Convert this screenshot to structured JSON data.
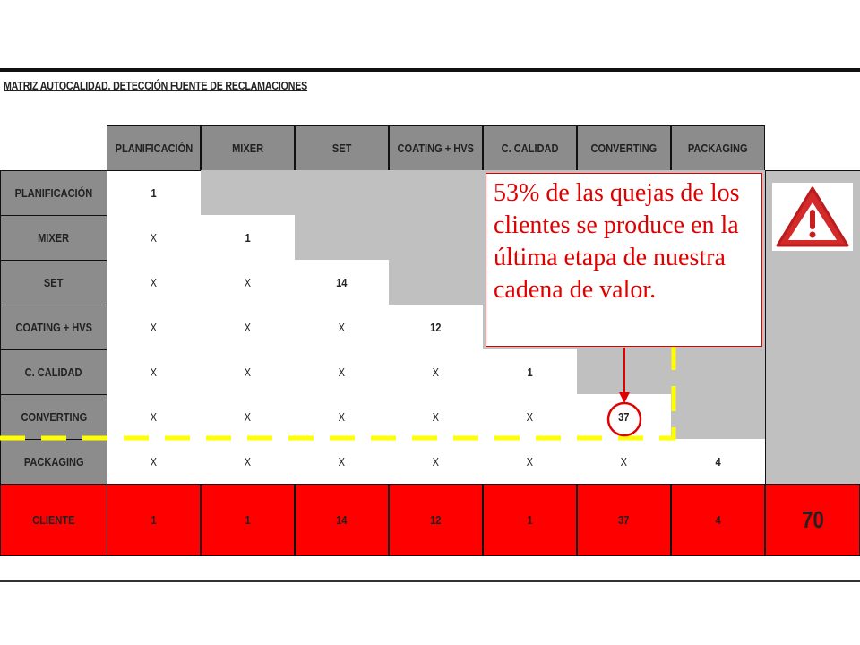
{
  "title": "MATRIZ AUTOCALIDAD. DETECCIÓN FUENTE DE RECLAMACIONES",
  "columns": [
    "PLANIFICACIÓN",
    "MIXER",
    "SET",
    "COATING + HVS",
    "C. CALIDAD",
    "CONVERTING",
    "PACKAGING"
  ],
  "rows": [
    {
      "label": "PLANIFICACIÓN",
      "cells": [
        "1"
      ]
    },
    {
      "label": "MIXER",
      "cells": [
        "X",
        "1"
      ]
    },
    {
      "label": "SET",
      "cells": [
        "X",
        "X",
        "14"
      ]
    },
    {
      "label": "COATING + HVS",
      "cells": [
        "X",
        "X",
        "X",
        "12"
      ]
    },
    {
      "label": "C. CALIDAD",
      "cells": [
        "X",
        "X",
        "X",
        "X",
        "1"
      ]
    },
    {
      "label": "CONVERTING",
      "cells": [
        "X",
        "X",
        "X",
        "X",
        "X",
        "37"
      ]
    },
    {
      "label": "PACKAGING",
      "cells": [
        "X",
        "X",
        "X",
        "X",
        "X",
        "X",
        "4"
      ]
    }
  ],
  "total_row": {
    "label": "CLIENTE",
    "cells": [
      "1",
      "1",
      "14",
      "12",
      "1",
      "37",
      "4"
    ],
    "total": "70"
  },
  "callout": "53% de las quejas de los clientes se produce en la última etapa de nuestra cadena de valor.",
  "highlighted_value": "37",
  "icons": [
    "warning-icon"
  ],
  "colors": {
    "header": "#8c8c8c",
    "empty": "#c0c0c0",
    "total_row": "#ff0000",
    "callout_text": "#e00000",
    "dashed_line": "#ffff00"
  }
}
